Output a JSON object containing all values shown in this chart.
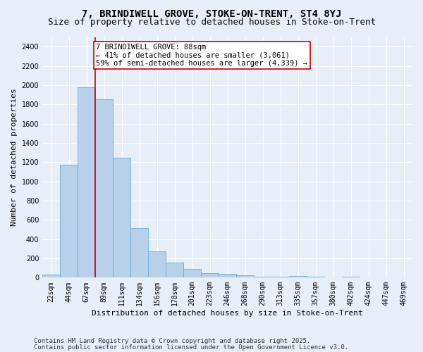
{
  "title1": "7, BRINDIWELL GROVE, STOKE-ON-TRENT, ST4 8YJ",
  "title2": "Size of property relative to detached houses in Stoke-on-Trent",
  "xlabel": "Distribution of detached houses by size in Stoke-on-Trent",
  "ylabel": "Number of detached properties",
  "categories": [
    "22sqm",
    "44sqm",
    "67sqm",
    "89sqm",
    "111sqm",
    "134sqm",
    "156sqm",
    "178sqm",
    "201sqm",
    "223sqm",
    "246sqm",
    "268sqm",
    "290sqm",
    "313sqm",
    "335sqm",
    "357sqm",
    "380sqm",
    "402sqm",
    "424sqm",
    "447sqm",
    "469sqm"
  ],
  "values": [
    30,
    1175,
    1975,
    1855,
    1245,
    515,
    275,
    158,
    90,
    48,
    40,
    28,
    12,
    12,
    20,
    12,
    5,
    12,
    5,
    5,
    5
  ],
  "bar_color": "#b8d0ea",
  "bar_edge_color": "#6aaed6",
  "annotation_text_line1": "7 BRINDIWELL GROVE: 88sqm",
  "annotation_text_line2": "← 41% of detached houses are smaller (3,061)",
  "annotation_text_line3": "59% of semi-detached houses are larger (4,339) →",
  "annotation_box_color": "#ffffff",
  "annotation_box_edge": "#cc0000",
  "vline_color": "#cc0000",
  "ylim": [
    0,
    2500
  ],
  "yticks": [
    0,
    200,
    400,
    600,
    800,
    1000,
    1200,
    1400,
    1600,
    1800,
    2000,
    2200,
    2400
  ],
  "footer1": "Contains HM Land Registry data © Crown copyright and database right 2025.",
  "footer2": "Contains public sector information licensed under the Open Government Licence v3.0.",
  "bg_color": "#e8eef8",
  "plot_bg_color": "#e8eef8",
  "grid_color": "#ffffff",
  "title_fontsize": 10,
  "subtitle_fontsize": 9,
  "axis_label_fontsize": 8,
  "tick_fontsize": 7,
  "footer_fontsize": 6.5,
  "annotation_fontsize": 7.5
}
